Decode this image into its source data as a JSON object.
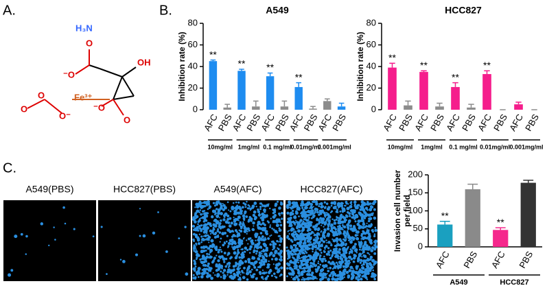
{
  "panel_labels": [
    "A.",
    "B.",
    "C."
  ],
  "structure": {
    "amine": "H₃N",
    "iron": "Fe³⁺",
    "hydroxyl": "OH",
    "oxygens": [
      "O",
      "O",
      "O",
      "O"
    ],
    "anions": [
      "⁻O",
      "O⁻",
      "⁻O"
    ]
  },
  "images": {
    "labels": [
      "A549(PBS)",
      "HCC827(PBS)",
      "A549(AFC)",
      "HCC827(AFC)"
    ]
  },
  "chart_data": [
    {
      "type": "bar",
      "title": "A549",
      "ylabel": [
        "Inhibition rate (%)"
      ],
      "categories": [
        "AFC",
        "PBS",
        "AFC",
        "PBS",
        "AFC",
        "PBS",
        "AFC",
        "PBS",
        "AFC",
        "PBS"
      ],
      "values": [
        45,
        2,
        36,
        3,
        31,
        3,
        21,
        1,
        8,
        3
      ],
      "errors": [
        1,
        3,
        1.5,
        5,
        3,
        5,
        4,
        2,
        2,
        3
      ],
      "colors": [
        "#1e8cf0",
        "#8c8c8c",
        "#1e8cf0",
        "#8c8c8c",
        "#1e8cf0",
        "#8c8c8c",
        "#1e8cf0",
        "#8c8c8c",
        "#8c8c8c",
        "#1e8cf0"
      ],
      "value_annotations": [
        "**",
        null,
        "**",
        null,
        "**",
        null,
        "**",
        null,
        null,
        null
      ],
      "groups": [
        "10mg/ml",
        "1mg/ml",
        "0.1 mg/ml",
        "0.01mg/ml",
        "0.001mg/ml"
      ],
      "ylim": [
        0,
        80
      ],
      "yticks": [
        0,
        20,
        40,
        60,
        80
      ],
      "x_axis_line": false
    },
    {
      "type": "bar",
      "title": "HCC827",
      "ylabel": [
        "Inhibition rate (%)"
      ],
      "categories": [
        "AFC",
        "PBS",
        "AFC",
        "PBS",
        "AFC",
        "PBS",
        "AFC",
        "PBS",
        "AFC",
        "PBS"
      ],
      "values": [
        39,
        4,
        35,
        3,
        21,
        2,
        33,
        0,
        5,
        0
      ],
      "errors": [
        4,
        4,
        1,
        3,
        4,
        3,
        3,
        0,
        2,
        0
      ],
      "colors": [
        "#f51e8c",
        "#8c8c8c",
        "#f51e8c",
        "#8c8c8c",
        "#f51e8c",
        "#8c8c8c",
        "#f51e8c",
        "#8c8c8c",
        "#f51e8c",
        "#8c8c8c"
      ],
      "value_annotations": [
        "**",
        null,
        "**",
        null,
        "**",
        null,
        "**",
        null,
        null,
        null
      ],
      "groups": [
        "10mg/ml",
        "1mg/ml",
        "0.1 mg/ml",
        "0.01mg/ml",
        "0.001mg/ml"
      ],
      "ylim": [
        0,
        80
      ],
      "yticks": [
        0,
        20,
        40,
        60,
        80
      ],
      "x_axis_line": false
    },
    {
      "type": "bar",
      "ylabel": [
        "Invasion cell number",
        "per field"
      ],
      "categories": [
        "AFC",
        "PBS",
        "AFC",
        "PBS"
      ],
      "values": [
        62,
        160,
        47,
        178
      ],
      "errors": [
        9,
        14,
        6,
        7
      ],
      "colors": [
        "#1aa0c0",
        "#8a8a8a",
        "#f5288c",
        "#333333"
      ],
      "value_annotations": [
        "**",
        null,
        "**",
        null
      ],
      "groups": [
        "A549",
        "HCC827"
      ],
      "ylim": [
        0,
        200
      ],
      "yticks": [
        0,
        50,
        100,
        150,
        200
      ],
      "x_axis_line": true
    }
  ]
}
